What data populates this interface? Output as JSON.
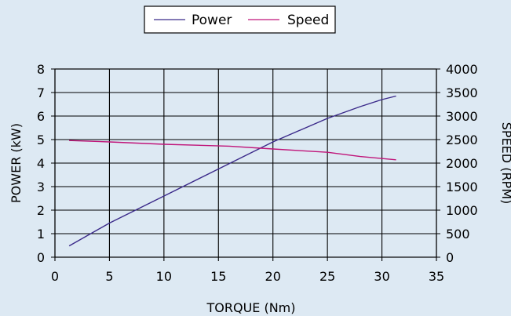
{
  "chart_data": {
    "type": "line",
    "xlabel": "TORQUE (Nm)",
    "ylabel_left": "POWER (kW)",
    "ylabel_right": "SPEED (RPM)",
    "xlim": [
      0,
      35
    ],
    "ylim_left": [
      0,
      8
    ],
    "ylim_right": [
      0,
      4000
    ],
    "x_ticks": [
      0,
      5,
      10,
      15,
      20,
      25,
      30,
      35
    ],
    "y_ticks_left": [
      0,
      1,
      2,
      3,
      4,
      5,
      6,
      7,
      8
    ],
    "y_ticks_right": [
      0,
      500,
      1000,
      1500,
      2000,
      2500,
      3000,
      3500,
      4000
    ],
    "grid": true,
    "legend_position": "top-center",
    "background_color": "#dde9f3",
    "series": [
      {
        "name": "Power",
        "axis": "left",
        "color": "#3b2a8a",
        "x": [
          1.3,
          5,
          10,
          15,
          20,
          25,
          28,
          30,
          31.3
        ],
        "y": [
          0.48,
          1.45,
          2.6,
          3.75,
          4.9,
          5.9,
          6.4,
          6.7,
          6.85
        ]
      },
      {
        "name": "Speed",
        "axis": "right",
        "color": "#c0157a",
        "x": [
          1.3,
          5,
          10,
          16,
          20,
          25,
          28,
          31.3
        ],
        "y": [
          2480,
          2450,
          2400,
          2360,
          2300,
          2230,
          2140,
          2070
        ]
      }
    ]
  }
}
